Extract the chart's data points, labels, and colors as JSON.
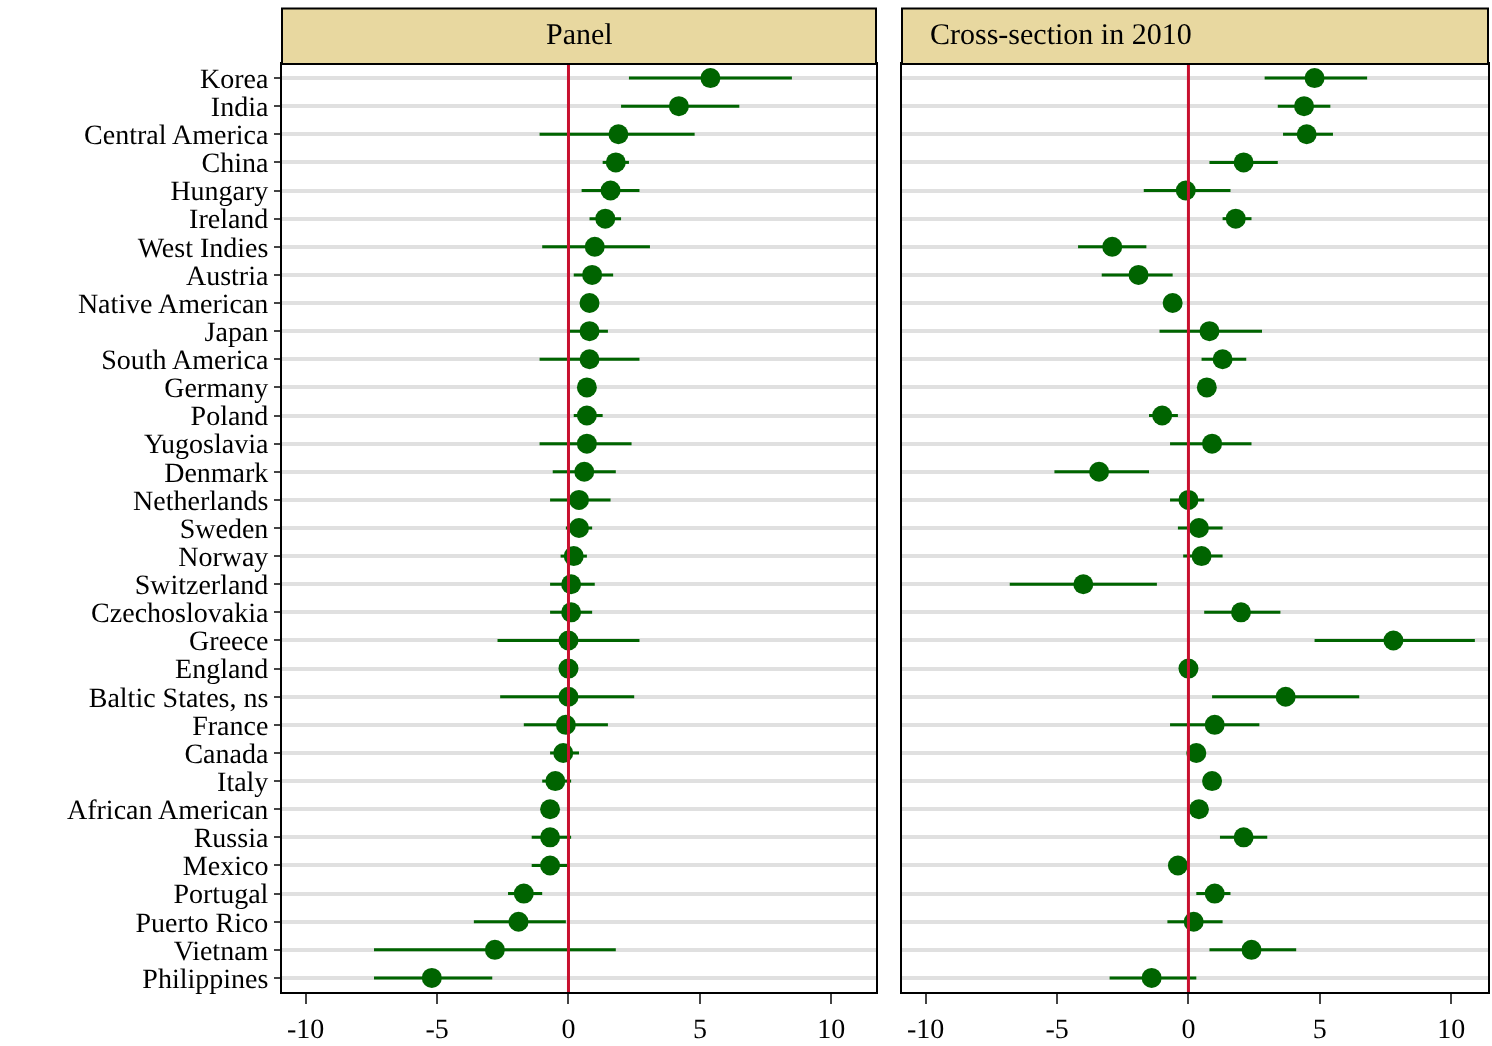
{
  "chart_data": [
    {
      "type": "scatter",
      "title": "Panel",
      "orientation": "horizontal",
      "categories": [
        "Korea",
        "India",
        "Central America",
        "China",
        "Hungary",
        "Ireland",
        "West Indies",
        "Austria",
        "Native American",
        "Japan",
        "South America",
        "Germany",
        "Poland",
        "Yugoslavia",
        "Denmark",
        "Netherlands",
        "Sweden",
        "Norway",
        "Switzerland",
        "Czechoslovakia",
        "Greece",
        "England",
        "Baltic States, ns",
        "France",
        "Canada",
        "Italy",
        "African American",
        "Russia",
        "Mexico",
        "Portugal",
        "Puerto Rico",
        "Vietnam",
        "Philippines"
      ],
      "values": [
        5.4,
        4.2,
        1.9,
        1.8,
        1.6,
        1.4,
        1.0,
        0.9,
        0.8,
        0.8,
        0.8,
        0.7,
        0.7,
        0.7,
        0.6,
        0.4,
        0.4,
        0.2,
        0.1,
        0.1,
        0.0,
        0.0,
        0.0,
        -0.1,
        -0.2,
        -0.5,
        -0.7,
        -0.7,
        -0.7,
        -1.7,
        -1.9,
        -2.8,
        -5.2
      ],
      "errors": [
        [
          2.3,
          8.5
        ],
        [
          2.0,
          6.5
        ],
        [
          -1.1,
          4.8
        ],
        [
          1.3,
          2.3
        ],
        [
          0.5,
          2.7
        ],
        [
          0.8,
          2.0
        ],
        [
          -1.0,
          3.1
        ],
        [
          0.2,
          1.7
        ],
        null,
        [
          0.0,
          1.5
        ],
        [
          -1.1,
          2.7
        ],
        null,
        [
          0.2,
          1.3
        ],
        [
          -1.1,
          2.4
        ],
        [
          -0.6,
          1.8
        ],
        [
          -0.7,
          1.6
        ],
        [
          -0.1,
          0.9
        ],
        [
          -0.3,
          0.7
        ],
        [
          -0.7,
          1.0
        ],
        [
          -0.7,
          0.9
        ],
        [
          -2.7,
          2.7
        ],
        null,
        [
          -2.6,
          2.5
        ],
        [
          -1.7,
          1.5
        ],
        [
          -0.7,
          0.4
        ],
        [
          -1.0,
          0.1
        ],
        null,
        [
          -1.4,
          0.1
        ],
        [
          -1.4,
          0.0
        ],
        [
          -2.3,
          -1.0
        ],
        [
          -3.6,
          -0.1
        ],
        [
          -7.4,
          1.8
        ],
        [
          -7.4,
          -2.9
        ]
      ],
      "color": "#006400",
      "marker": "circle",
      "xlim": [
        -10.9,
        11.7
      ],
      "xticks": [
        -10,
        -5,
        0,
        5,
        10
      ],
      "ref_lines": [
        {
          "axis": "x",
          "value": 0,
          "color": "#c8102e"
        }
      ],
      "grid": "y"
    },
    {
      "type": "scatter",
      "title": "Cross-section in 2010",
      "orientation": "horizontal",
      "categories": [
        "Korea",
        "India",
        "Central America",
        "China",
        "Hungary",
        "Ireland",
        "West Indies",
        "Austria",
        "Native American",
        "Japan",
        "South America",
        "Germany",
        "Poland",
        "Yugoslavia",
        "Denmark",
        "Netherlands",
        "Sweden",
        "Norway",
        "Switzerland",
        "Czechoslovakia",
        "Greece",
        "England",
        "Baltic States, ns",
        "France",
        "Canada",
        "Italy",
        "African American",
        "Russia",
        "Mexico",
        "Portugal",
        "Puerto Rico",
        "Vietnam",
        "Philippines"
      ],
      "values": [
        4.8,
        4.4,
        4.5,
        2.1,
        -0.1,
        1.8,
        -2.9,
        -1.9,
        -0.6,
        0.8,
        1.3,
        0.7,
        -1.0,
        0.9,
        -3.4,
        0.0,
        0.4,
        0.5,
        -4.0,
        2.0,
        7.8,
        0.0,
        3.7,
        1.0,
        0.3,
        0.9,
        0.4,
        2.1,
        -0.4,
        1.0,
        0.2,
        2.4,
        -1.4
      ],
      "errors": [
        [
          2.9,
          6.8
        ],
        [
          3.4,
          5.4
        ],
        [
          3.6,
          5.5
        ],
        [
          0.8,
          3.4
        ],
        [
          -1.7,
          1.6
        ],
        [
          1.3,
          2.4
        ],
        [
          -4.2,
          -1.6
        ],
        [
          -3.3,
          -0.6
        ],
        null,
        [
          -1.1,
          2.8
        ],
        [
          0.5,
          2.2
        ],
        null,
        [
          -1.5,
          -0.4
        ],
        [
          -0.7,
          2.4
        ],
        [
          -5.1,
          -1.5
        ],
        [
          -0.7,
          0.6
        ],
        [
          -0.4,
          1.3
        ],
        [
          -0.2,
          1.3
        ],
        [
          -6.8,
          -1.2
        ],
        [
          0.6,
          3.5
        ],
        [
          4.8,
          10.9
        ],
        null,
        [
          0.9,
          6.5
        ],
        [
          -0.7,
          2.7
        ],
        null,
        null,
        null,
        [
          1.2,
          3.0
        ],
        null,
        [
          0.3,
          1.6
        ],
        [
          -0.8,
          1.3
        ],
        [
          0.8,
          4.1
        ],
        [
          -3.0,
          0.3
        ]
      ],
      "color": "#006400",
      "marker": "circle",
      "xlim": [
        -10.9,
        11.4
      ],
      "xticks": [
        -10,
        -5,
        0,
        5,
        10
      ],
      "ref_lines": [
        {
          "axis": "x",
          "value": 0,
          "color": "#c8102e"
        }
      ],
      "grid": "y",
      "tick_labels": "x"
    }
  ]
}
